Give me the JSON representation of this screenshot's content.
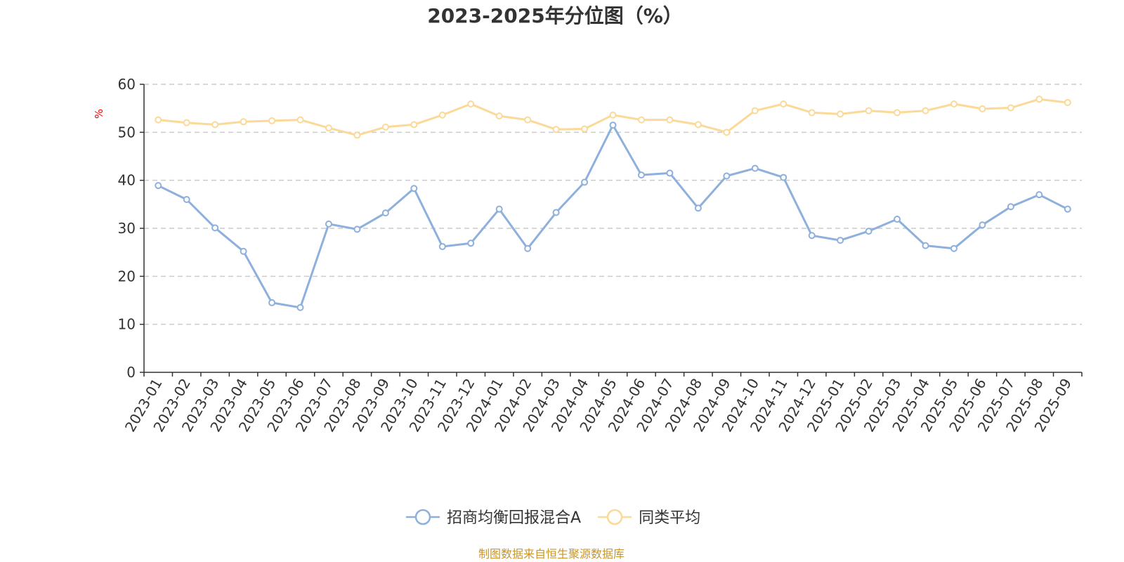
{
  "chart_data": {
    "type": "line",
    "title": "2023-2025年分位图（%）",
    "ylabel": "%",
    "ylim": [
      0,
      60
    ],
    "yticks": [
      0,
      10,
      20,
      30,
      40,
      50,
      60
    ],
    "grid": true,
    "legend_position": "bottom-center",
    "categories": [
      "2023-01",
      "2023-02",
      "2023-03",
      "2023-04",
      "2023-05",
      "2023-06",
      "2023-07",
      "2023-08",
      "2023-09",
      "2023-10",
      "2023-11",
      "2023-12",
      "2024-01",
      "2024-02",
      "2024-03",
      "2024-04",
      "2024-05",
      "2024-06",
      "2024-07",
      "2024-08",
      "2024-09",
      "2024-10",
      "2024-11",
      "2024-12",
      "2025-01",
      "2025-02",
      "2025-03",
      "2025-04",
      "2025-05",
      "2025-06",
      "2025-07",
      "2025-08",
      "2025-09"
    ],
    "series": [
      {
        "name": "招商均衡回报混合A",
        "color": "#8eb0dc",
        "values": [
          38.9,
          36.0,
          30.1,
          25.2,
          14.5,
          13.5,
          30.9,
          29.8,
          33.2,
          38.3,
          26.2,
          26.9,
          34.0,
          25.8,
          33.3,
          39.6,
          51.5,
          41.1,
          41.5,
          34.2,
          40.9,
          42.5,
          40.6,
          28.5,
          27.5,
          29.4,
          31.9,
          26.4,
          25.8,
          30.7,
          34.5,
          37.0,
          34.0
        ]
      },
      {
        "name": "同类平均",
        "color": "#fbd998",
        "values": [
          52.6,
          52.0,
          51.6,
          52.2,
          52.4,
          52.6,
          50.9,
          49.4,
          51.1,
          51.6,
          53.6,
          55.9,
          53.4,
          52.6,
          50.6,
          50.7,
          53.6,
          52.6,
          52.6,
          51.6,
          50.0,
          54.5,
          55.9,
          54.1,
          53.8,
          54.5,
          54.1,
          54.5,
          55.9,
          54.9,
          55.1,
          56.9,
          56.2
        ]
      }
    ],
    "y_label_color": "#ff0000",
    "source_color": "#c8962a"
  },
  "footer": {
    "source": "制图数据来自恒生聚源数据库"
  }
}
